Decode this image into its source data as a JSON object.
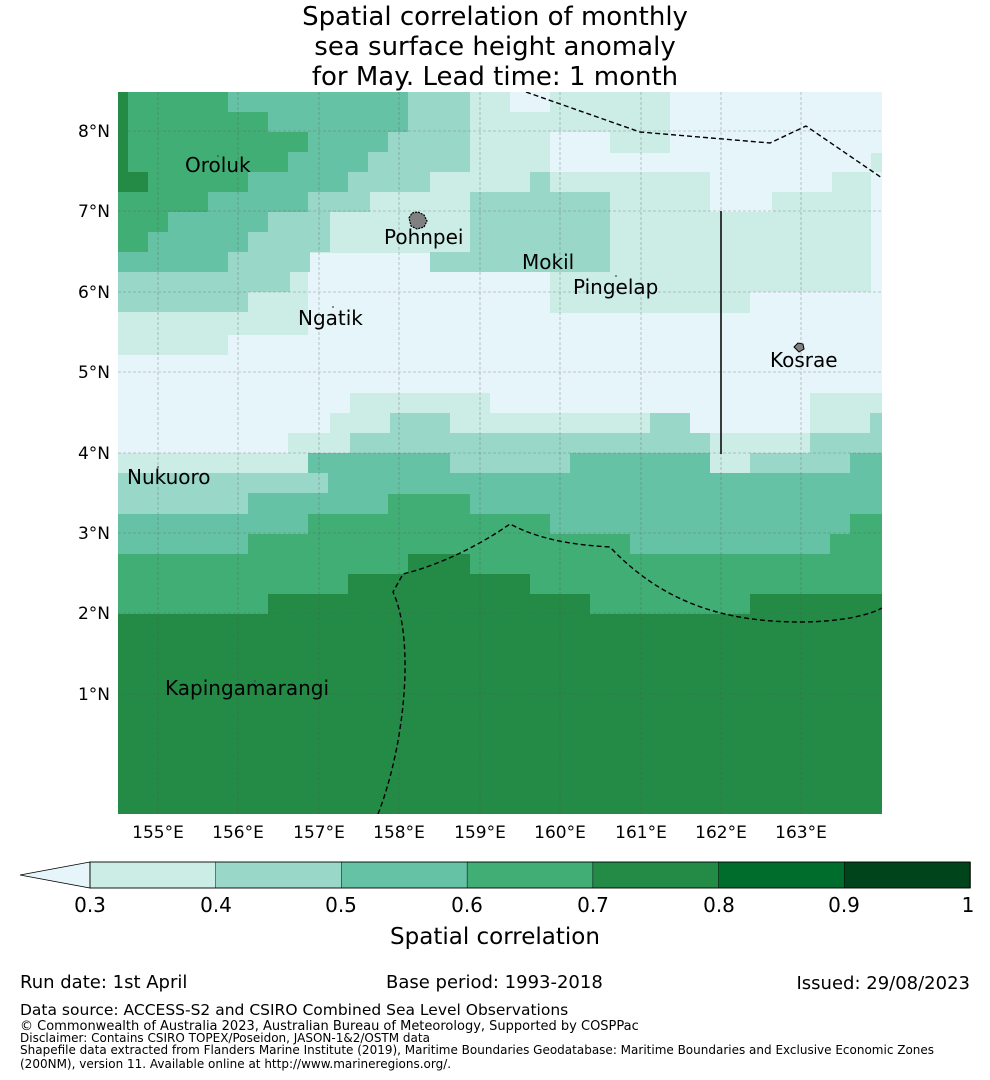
{
  "title": {
    "lines": [
      "Spatial correlation of monthly",
      "sea surface height anomaly",
      "for May. Lead time: 1 month"
    ]
  },
  "map": {
    "lat_labels": [
      "8°N",
      "7°N",
      "6°N",
      "5°N",
      "4°N",
      "3°N",
      "2°N",
      "1°N"
    ],
    "lon_labels": [
      "155°E",
      "156°E",
      "157°E",
      "158°E",
      "159°E",
      "160°E",
      "161°E",
      "162°E",
      "163°E"
    ],
    "places": [
      "Oroluk",
      "Pohnpei",
      "Mokil",
      "Pingelap",
      "Ngatik",
      "Kosrae",
      "Nukuoro",
      "Kapingamarangi"
    ]
  },
  "colorbar": {
    "label": "Spatial correlation",
    "ticks": [
      "0.3",
      "0.4",
      "0.5",
      "0.6",
      "0.7",
      "0.8",
      "0.9",
      "1"
    ],
    "colors": [
      "#e5f5f9",
      "#ccece6",
      "#99d8c9",
      "#66c2a4",
      "#41ae76",
      "#238b45",
      "#006d2c",
      "#00441b"
    ]
  },
  "footer": {
    "run_date": "Run date: 1st April",
    "base_period": "Base period: 1993-2018",
    "issued": "Issued: 29/08/2023",
    "data_source": "Data source: ACCESS-S2 and CSIRO Combined Sea Level Observations",
    "copyright": "© Commonwealth of Australia 2023, Australian Bureau of Meteorology, Supported by COSPPac",
    "disclaimer": "Disclaimer: Contains CSIRO TOPEX/Poseidon, JASON-1&2/OSTM data",
    "shapefile": "Shapefile data extracted from Flanders Marine Institute (2019), Maritime Boundaries Geodatabase: Maritime Boundaries and Exclusive Economic Zones (200NM), version 11. Available online at http://www.marineregions.org/."
  }
}
